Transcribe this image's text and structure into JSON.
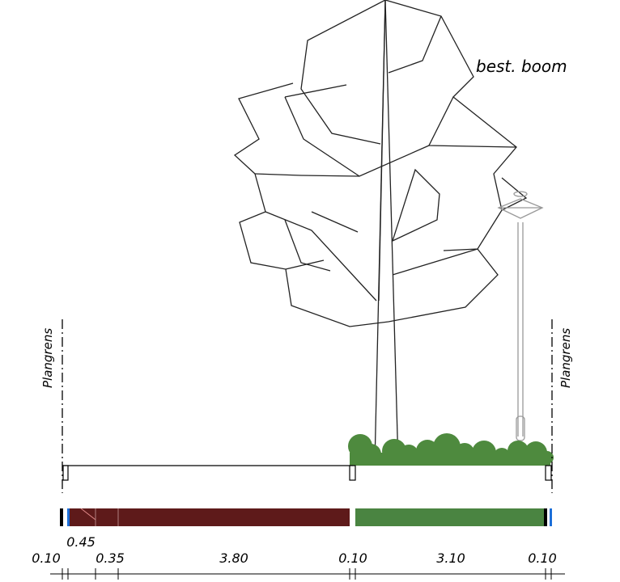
{
  "tree_label": "best. boom",
  "boundary_left": "Plangrens",
  "boundary_right": "Plangrens",
  "dimensions": [
    "0.10",
    "0.45",
    "0.35",
    "3.80",
    "0.10",
    "3.10",
    "0.10"
  ]
}
